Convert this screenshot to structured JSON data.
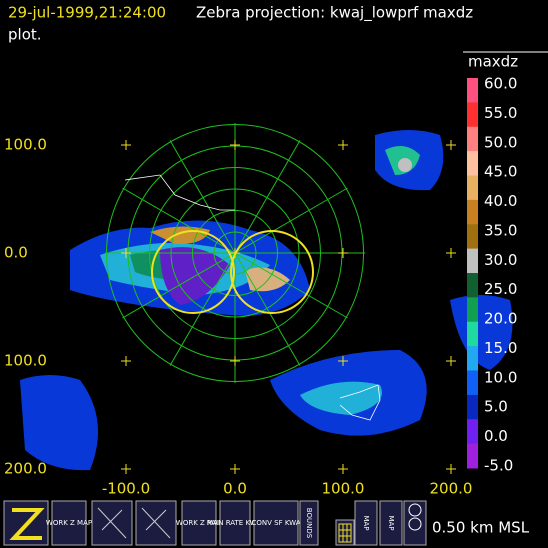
{
  "header": {
    "timestamp": "29-jul-1999,21:24:00",
    "title": "Zebra projection: kwaj_lowprf maxdz",
    "title_cont": "plot."
  },
  "axes": {
    "y_labels": [
      "100.0",
      "0.0",
      "100.0",
      "200.0"
    ],
    "x_labels": [
      "-100.0",
      "0.0",
      "100.0",
      "200.0"
    ]
  },
  "colorbar": {
    "field": "maxdz",
    "labels": [
      "60.0",
      "55.0",
      "50.0",
      "45.0",
      "40.0",
      "35.0",
      "30.0",
      "25.0",
      "20.0",
      "15.0",
      "10.0",
      "5.0",
      "0.0",
      "-5.0"
    ]
  },
  "toolbar": {
    "buttons": [
      {
        "label": "WORK Z MAP"
      },
      {
        "label": "WORK Z MAP"
      },
      {
        "label": "RAIN RATE KWAJ"
      },
      {
        "label": "CONV SF KWA"
      },
      {
        "label": "BOUNDS"
      },
      {
        "label": "MAP"
      },
      {
        "label": "MAP"
      }
    ],
    "altitude": "0.50 km MSL"
  }
}
